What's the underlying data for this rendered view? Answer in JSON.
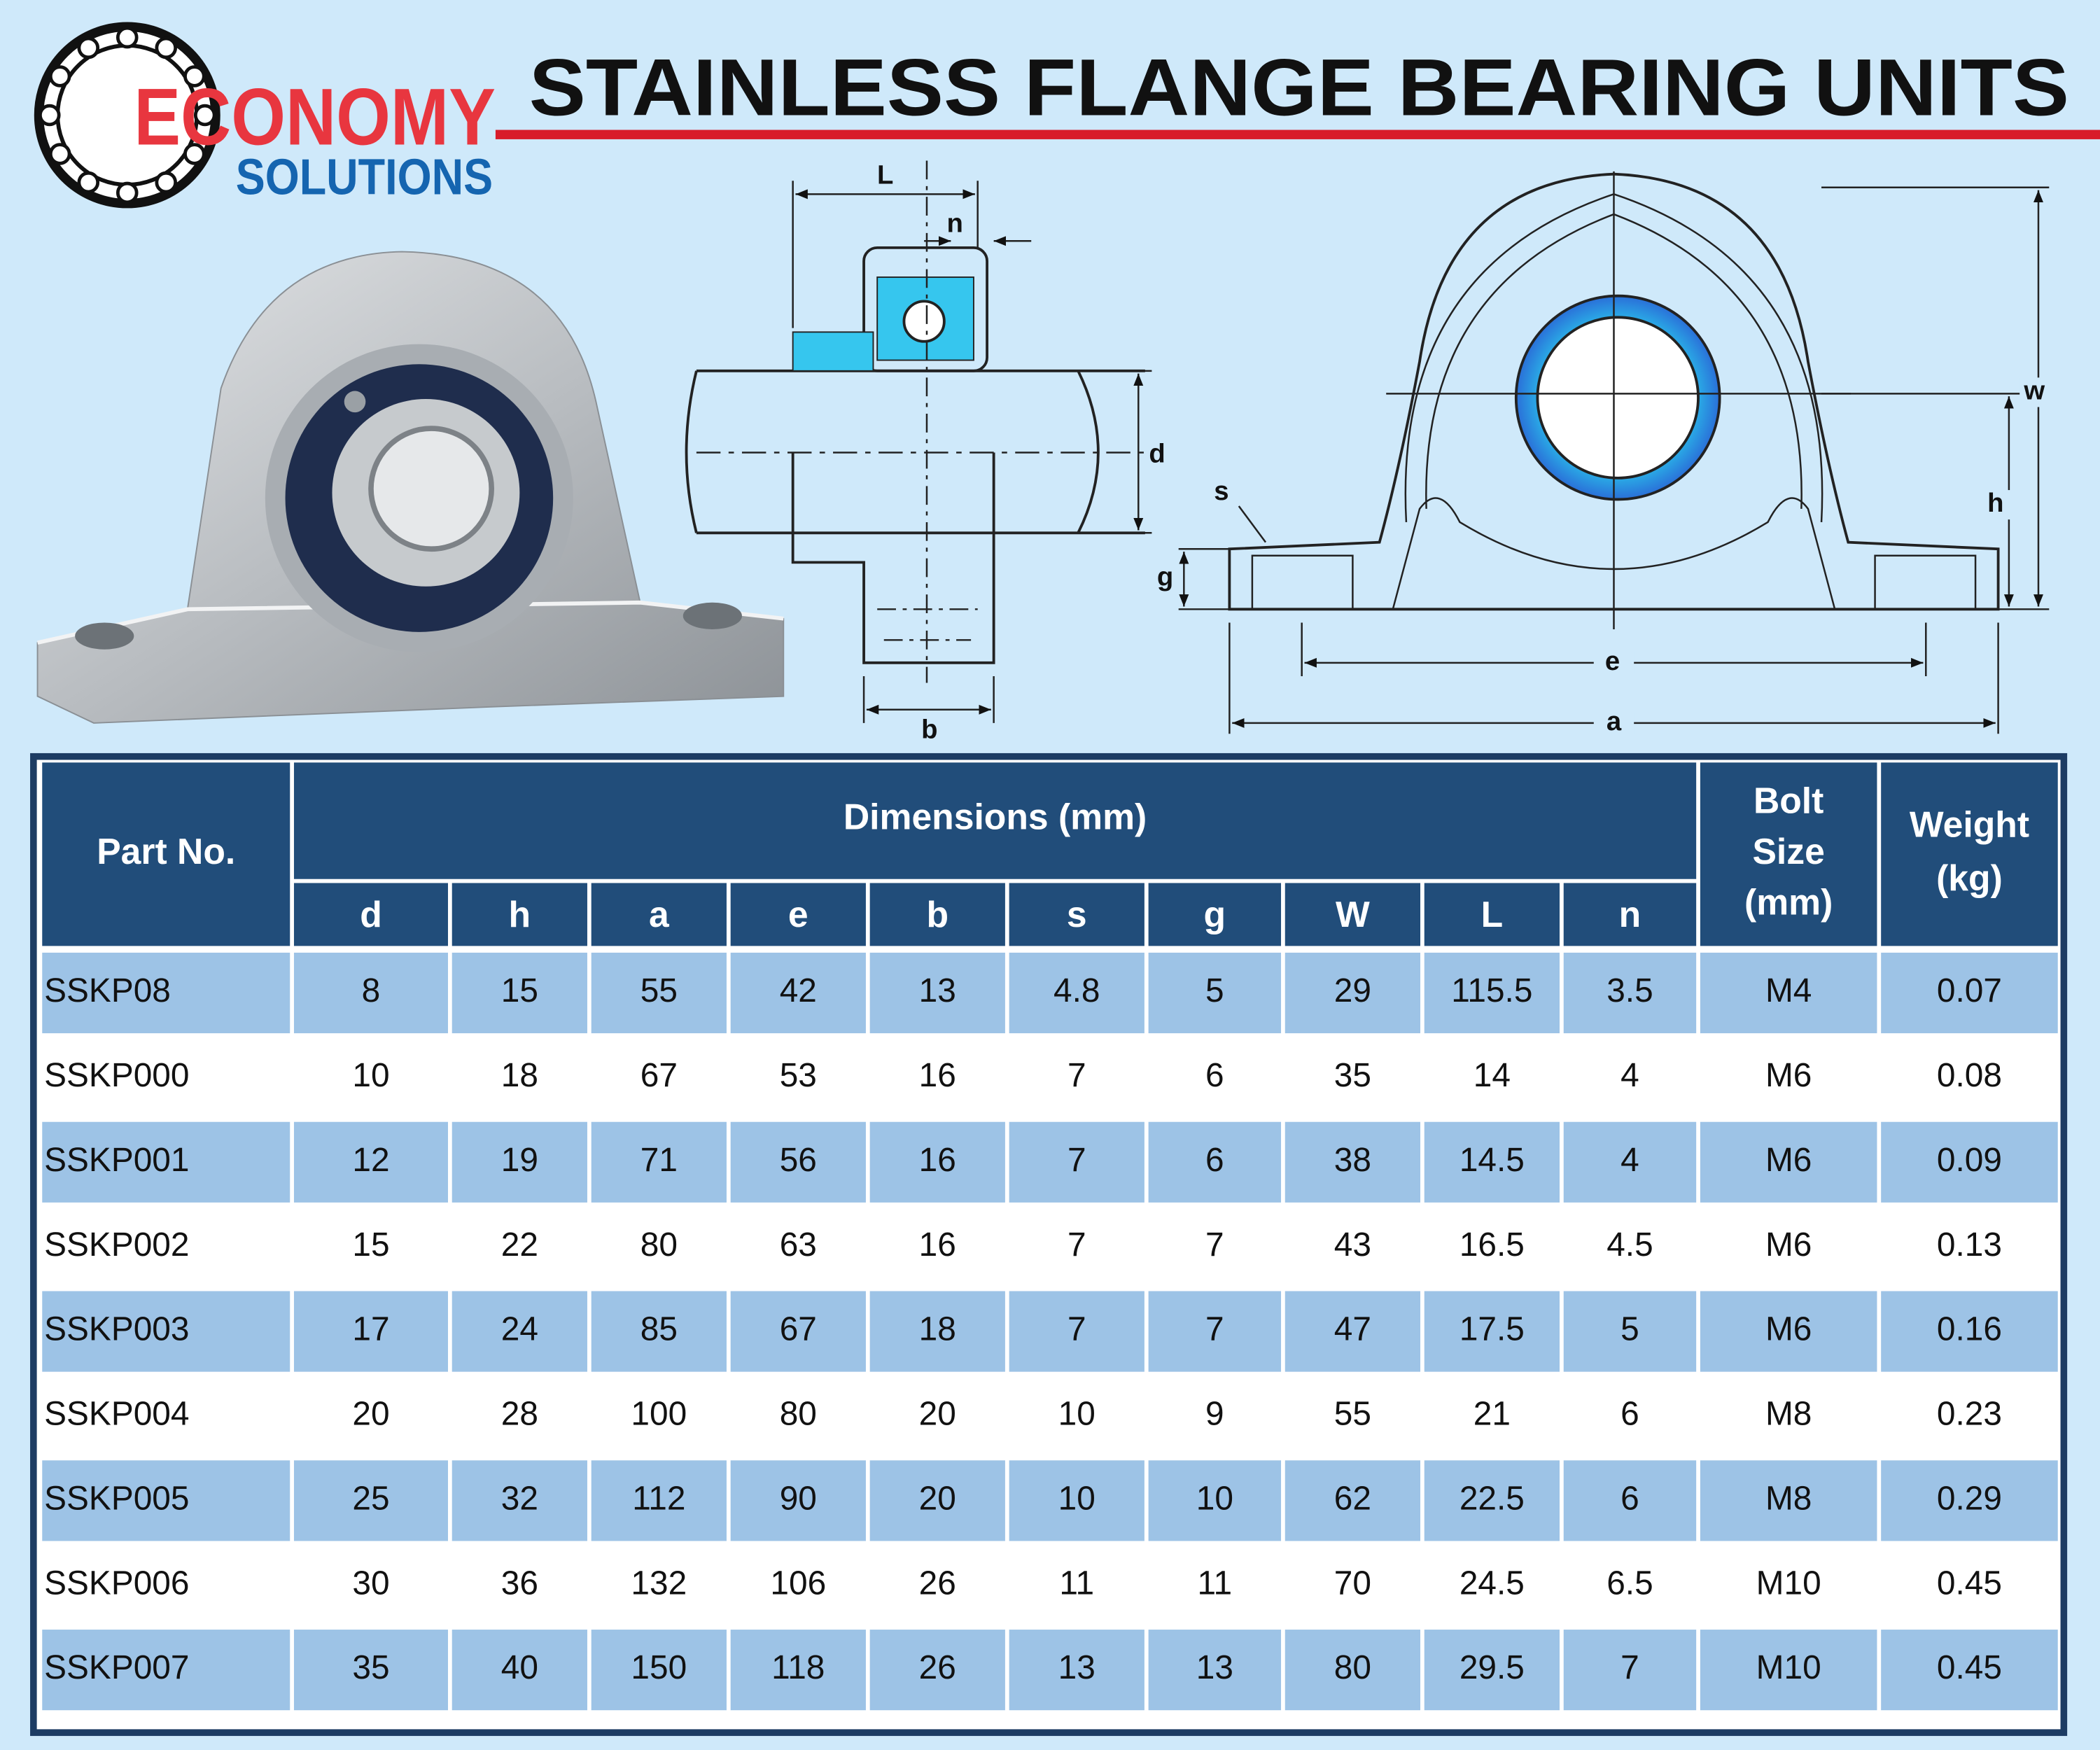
{
  "logo": {
    "line1": "ECONOMY",
    "line2": "SOLUTIONS"
  },
  "title": "STAINLESS FLANGE BEARING UNITS",
  "diagram_labels": {
    "side": [
      "L",
      "n",
      "d",
      "b"
    ],
    "front": [
      "s",
      "g",
      "h",
      "w",
      "e",
      "a"
    ]
  },
  "table": {
    "header": {
      "part": "Part No.",
      "group": "Dimensions (mm)",
      "bolt": [
        "Bolt",
        "Size",
        "(mm)"
      ],
      "weight": [
        "Weight",
        "(kg)"
      ],
      "columns": [
        "d",
        "h",
        "a",
        "e",
        "b",
        "s",
        "g",
        "W",
        "L",
        "n"
      ]
    },
    "rows": [
      [
        "SSKP08",
        8,
        15,
        55,
        42,
        13,
        4.8,
        5,
        29,
        115.5,
        3.5,
        "M4",
        0.07
      ],
      [
        "SSKP000",
        10,
        18,
        67,
        53,
        16,
        7,
        6,
        35,
        14,
        4,
        "M6",
        0.08
      ],
      [
        "SSKP001",
        12,
        19,
        71,
        56,
        16,
        7,
        6,
        38,
        14.5,
        4,
        "M6",
        0.09
      ],
      [
        "SSKP002",
        15,
        22,
        80,
        63,
        16,
        7,
        7,
        43,
        16.5,
        4.5,
        "M6",
        0.13
      ],
      [
        "SSKP003",
        17,
        24,
        85,
        67,
        18,
        7,
        7,
        47,
        17.5,
        5,
        "M6",
        0.16
      ],
      [
        "SSKP004",
        20,
        28,
        100,
        80,
        20,
        10,
        9,
        55,
        21,
        6,
        "M8",
        0.23
      ],
      [
        "SSKP005",
        25,
        32,
        112,
        90,
        20,
        10,
        10,
        62,
        22.5,
        6,
        "M8",
        0.29
      ],
      [
        "SSKP006",
        30,
        36,
        132,
        106,
        26,
        11,
        11,
        70,
        24.5,
        6.5,
        "M10",
        0.45
      ],
      [
        "SSKP007",
        35,
        40,
        150,
        118,
        26,
        13,
        13,
        80,
        29.5,
        7,
        "M10",
        0.45
      ]
    ]
  }
}
